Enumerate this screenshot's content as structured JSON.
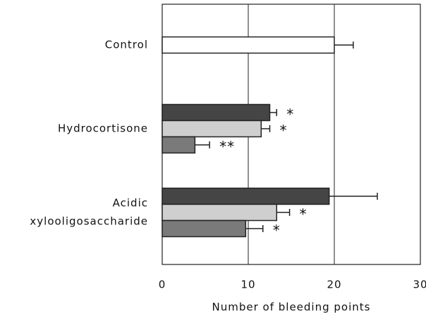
{
  "chart_data": {
    "type": "bar",
    "orientation": "horizontal",
    "xlabel": "Number of bleeding points",
    "xlim": [
      0,
      30
    ],
    "xticks": [
      0,
      10,
      20,
      30
    ],
    "grid": true,
    "groups": [
      {
        "label": [
          "Control"
        ],
        "bars": [
          {
            "value": 20,
            "error": 2.2,
            "color": "#ffffff",
            "annotation": null
          }
        ]
      },
      {
        "label": [
          "Hydrocortisone"
        ],
        "bars": [
          {
            "value": 12.5,
            "error": 0.8,
            "color": "#454545",
            "annotation": "*"
          },
          {
            "value": 11.5,
            "error": 1.0,
            "color": "#cfcfcf",
            "annotation": "*"
          },
          {
            "value": 3.8,
            "error": 1.7,
            "color": "#7a7a7a",
            "annotation": "**"
          }
        ]
      },
      {
        "label": [
          "Acidic",
          "xylooligosaccharide"
        ],
        "bars": [
          {
            "value": 19.4,
            "error": 5.6,
            "color": "#454545",
            "annotation": null
          },
          {
            "value": 13.3,
            "error": 1.5,
            "color": "#cfcfcf",
            "annotation": "*"
          },
          {
            "value": 9.7,
            "error": 2.0,
            "color": "#7a7a7a",
            "annotation": "*"
          }
        ]
      }
    ]
  }
}
